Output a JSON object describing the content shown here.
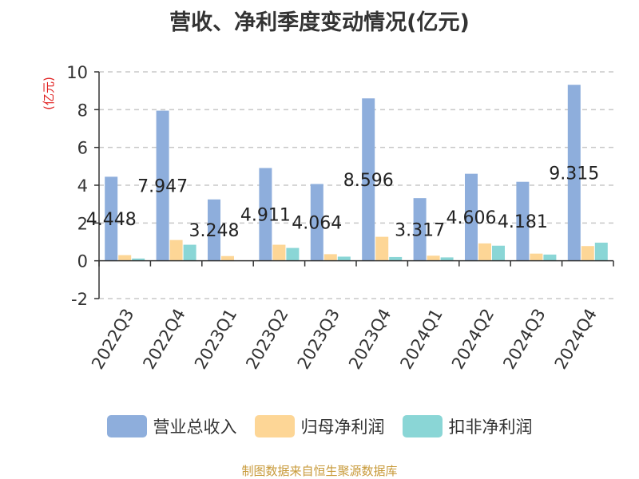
{
  "chart_data": {
    "type": "bar",
    "title": "营收、净利季度变动情况(亿元)",
    "ylabel": "(亿元)",
    "ylim": [
      -2,
      10
    ],
    "yticks": [
      -2,
      0,
      2,
      4,
      6,
      8,
      10
    ],
    "grid": true,
    "legend_position": "bottom",
    "categories": [
      "2022Q3",
      "2022Q4",
      "2023Q1",
      "2023Q2",
      "2023Q3",
      "2023Q4",
      "2024Q1",
      "2024Q2",
      "2024Q3",
      "2024Q4"
    ],
    "series": [
      {
        "name": "营业总收入",
        "color": "#8eaedc",
        "values": [
          4.448,
          7.947,
          3.248,
          4.911,
          4.064,
          8.596,
          3.317,
          4.606,
          4.181,
          9.315
        ],
        "labels": [
          "4.448",
          "7.947",
          "3.248",
          "4.911",
          "4.064",
          "8.596",
          "3.317",
          "4.606",
          "4.181",
          "9.315"
        ]
      },
      {
        "name": "归母净利润",
        "color": "#fdd696",
        "values": [
          0.3,
          1.1,
          0.25,
          0.85,
          0.35,
          1.27,
          0.27,
          0.92,
          0.38,
          0.78
        ]
      },
      {
        "name": "扣非净利润",
        "color": "#8ad6d6",
        "values": [
          0.12,
          0.85,
          0.02,
          0.68,
          0.22,
          0.2,
          0.18,
          0.8,
          0.33,
          0.96
        ]
      }
    ]
  },
  "source": "制图数据来自恒生聚源数据库"
}
